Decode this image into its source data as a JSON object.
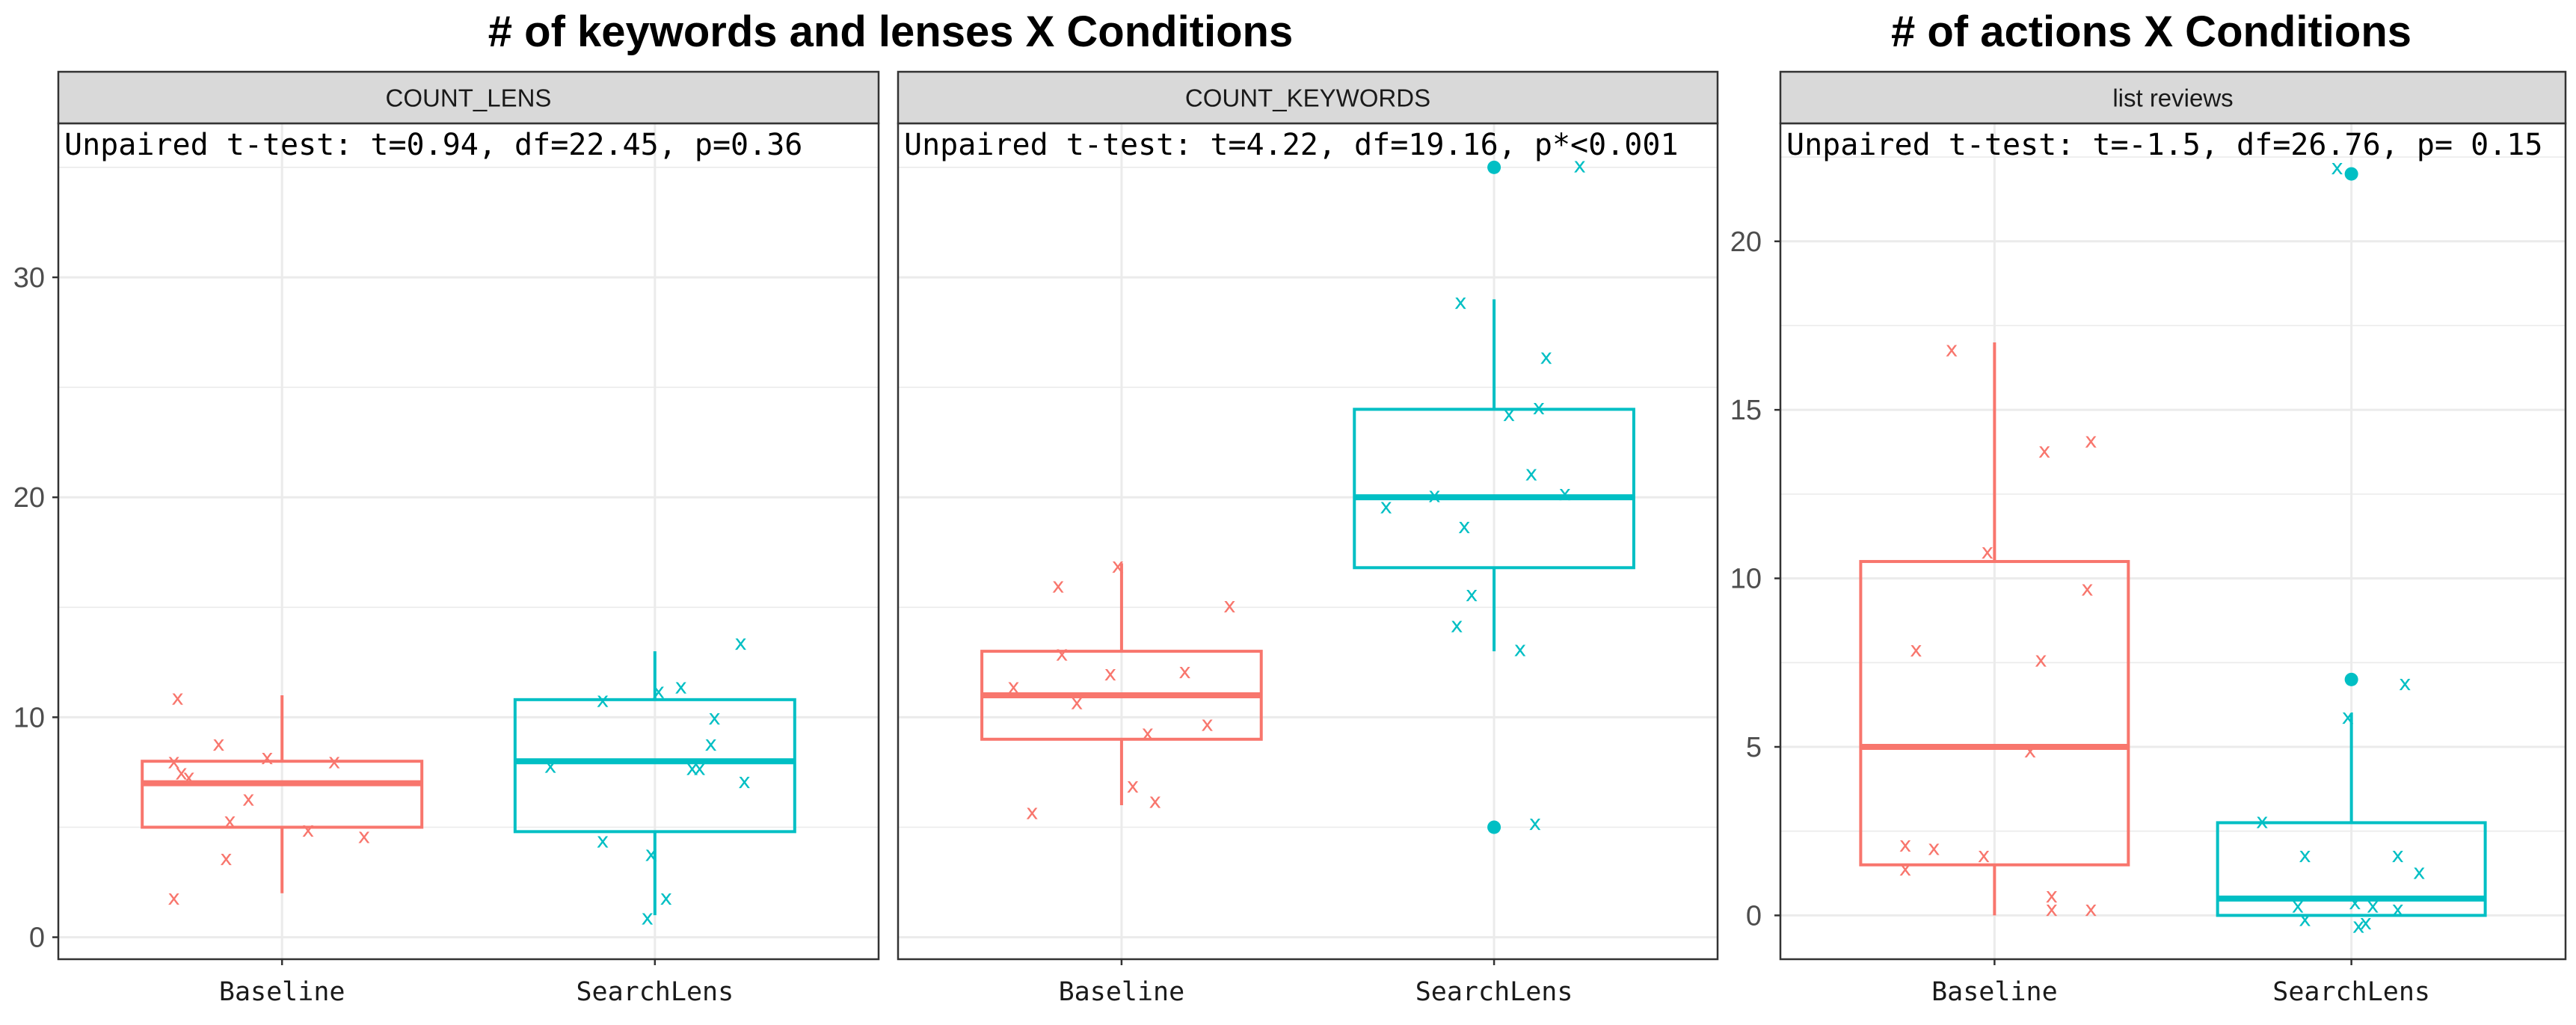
{
  "colors": {
    "baseline": "#F8766D",
    "searchlens": "#00BFC4",
    "strip_bg": "#D9D9D9",
    "grid": "#EBEBEB",
    "frame": "#333333"
  },
  "chart_data": [
    {
      "type": "box",
      "title": "# of keywords and lenses X Conditions",
      "panel": "COUNT_LENS",
      "annotation": "Unpaired t-test: t=0.94, df=22.45, p=0.36",
      "categories": [
        "Baseline",
        "SearchLens"
      ],
      "ylim": [
        -1,
        37
      ],
      "yticks": [
        0,
        10,
        20,
        30
      ],
      "grid": true,
      "boxes": [
        {
          "group": "Baseline",
          "min": 2,
          "q1": 5,
          "median": 7,
          "q3": 8,
          "max": 11,
          "outliers": []
        },
        {
          "group": "SearchLens",
          "min": 1,
          "q1": 4.8,
          "median": 8,
          "q3": 10.8,
          "max": 13,
          "outliers": []
        }
      ],
      "points": [
        {
          "group": "Baseline",
          "jitter": -0.28,
          "y": 10.9
        },
        {
          "group": "Baseline",
          "jitter": -0.17,
          "y": 8.8
        },
        {
          "group": "Baseline",
          "jitter": -0.29,
          "y": 8.0
        },
        {
          "group": "Baseline",
          "jitter": -0.27,
          "y": 7.5
        },
        {
          "group": "Baseline",
          "jitter": -0.25,
          "y": 7.3
        },
        {
          "group": "Baseline",
          "jitter": -0.04,
          "y": 8.2
        },
        {
          "group": "Baseline",
          "jitter": 0.14,
          "y": 8.0
        },
        {
          "group": "Baseline",
          "jitter": -0.09,
          "y": 6.3
        },
        {
          "group": "Baseline",
          "jitter": -0.14,
          "y": 5.3
        },
        {
          "group": "Baseline",
          "jitter": 0.07,
          "y": 4.9
        },
        {
          "group": "Baseline",
          "jitter": 0.22,
          "y": 4.6
        },
        {
          "group": "Baseline",
          "jitter": -0.15,
          "y": 3.6
        },
        {
          "group": "Baseline",
          "jitter": -0.29,
          "y": 1.8
        },
        {
          "group": "SearchLens",
          "jitter": 0.23,
          "y": 13.4
        },
        {
          "group": "SearchLens",
          "jitter": 0.07,
          "y": 11.4
        },
        {
          "group": "SearchLens",
          "jitter": 0.01,
          "y": 11.2
        },
        {
          "group": "SearchLens",
          "jitter": -0.14,
          "y": 10.8
        },
        {
          "group": "SearchLens",
          "jitter": 0.16,
          "y": 10.0
        },
        {
          "group": "SearchLens",
          "jitter": 0.15,
          "y": 8.8
        },
        {
          "group": "SearchLens",
          "jitter": -0.28,
          "y": 7.8
        },
        {
          "group": "SearchLens",
          "jitter": 0.1,
          "y": 7.7
        },
        {
          "group": "SearchLens",
          "jitter": 0.12,
          "y": 7.7
        },
        {
          "group": "SearchLens",
          "jitter": 0.24,
          "y": 7.1
        },
        {
          "group": "SearchLens",
          "jitter": -0.14,
          "y": 4.4
        },
        {
          "group": "SearchLens",
          "jitter": -0.01,
          "y": 3.8
        },
        {
          "group": "SearchLens",
          "jitter": 0.03,
          "y": 1.8
        },
        {
          "group": "SearchLens",
          "jitter": -0.02,
          "y": 0.9
        }
      ]
    },
    {
      "type": "box",
      "panel": "COUNT_KEYWORDS",
      "annotation": "Unpaired t-test: t=4.22, df=19.16, p*<0.001",
      "categories": [
        "Baseline",
        "SearchLens"
      ],
      "ylim": [
        -1,
        37
      ],
      "yticks": [
        0,
        10,
        20,
        30
      ],
      "grid": true,
      "boxes": [
        {
          "group": "Baseline",
          "min": 6,
          "q1": 9,
          "median": 11,
          "q3": 13,
          "max": 17,
          "outliers": []
        },
        {
          "group": "SearchLens",
          "min": 13,
          "q1": 16.8,
          "median": 20,
          "q3": 24,
          "max": 29,
          "outliers": [
            35,
            5
          ]
        }
      ],
      "points": [
        {
          "group": "Baseline",
          "jitter": -0.01,
          "y": 16.9
        },
        {
          "group": "Baseline",
          "jitter": -0.17,
          "y": 16.0
        },
        {
          "group": "Baseline",
          "jitter": 0.29,
          "y": 15.1
        },
        {
          "group": "Baseline",
          "jitter": -0.16,
          "y": 12.9
        },
        {
          "group": "Baseline",
          "jitter": -0.03,
          "y": 12.0
        },
        {
          "group": "Baseline",
          "jitter": 0.17,
          "y": 12.1
        },
        {
          "group": "Baseline",
          "jitter": -0.29,
          "y": 11.4
        },
        {
          "group": "Baseline",
          "jitter": -0.12,
          "y": 10.7
        },
        {
          "group": "Baseline",
          "jitter": 0.23,
          "y": 9.7
        },
        {
          "group": "Baseline",
          "jitter": 0.07,
          "y": 9.3
        },
        {
          "group": "Baseline",
          "jitter": 0.03,
          "y": 6.9
        },
        {
          "group": "Baseline",
          "jitter": 0.09,
          "y": 6.2
        },
        {
          "group": "Baseline",
          "jitter": -0.24,
          "y": 5.7
        },
        {
          "group": "SearchLens",
          "jitter": 0.23,
          "y": 35.1
        },
        {
          "group": "SearchLens",
          "jitter": -0.09,
          "y": 28.9
        },
        {
          "group": "SearchLens",
          "jitter": 0.14,
          "y": 26.4
        },
        {
          "group": "SearchLens",
          "jitter": 0.12,
          "y": 24.1
        },
        {
          "group": "SearchLens",
          "jitter": 0.04,
          "y": 23.8
        },
        {
          "group": "SearchLens",
          "jitter": 0.1,
          "y": 21.1
        },
        {
          "group": "SearchLens",
          "jitter": 0.19,
          "y": 20.2
        },
        {
          "group": "SearchLens",
          "jitter": -0.16,
          "y": 20.1
        },
        {
          "group": "SearchLens",
          "jitter": -0.29,
          "y": 19.6
        },
        {
          "group": "SearchLens",
          "jitter": -0.08,
          "y": 18.7
        },
        {
          "group": "SearchLens",
          "jitter": -0.06,
          "y": 15.6
        },
        {
          "group": "SearchLens",
          "jitter": -0.1,
          "y": 14.2
        },
        {
          "group": "SearchLens",
          "jitter": 0.07,
          "y": 13.1
        },
        {
          "group": "SearchLens",
          "jitter": 0.11,
          "y": 5.2
        }
      ]
    },
    {
      "type": "box",
      "title": "# of actions X Conditions",
      "panel": "list reviews",
      "annotation": "Unpaired t-test: t=-1.5, df=26.76, p= 0.15",
      "categories": [
        "Baseline",
        "SearchLens"
      ],
      "ylim": [
        -1.3,
        23.5
      ],
      "yticks": [
        0,
        5,
        10,
        15,
        20
      ],
      "grid": true,
      "boxes": [
        {
          "group": "Baseline",
          "min": 0,
          "q1": 1.5,
          "median": 5,
          "q3": 10.5,
          "max": 17,
          "outliers": []
        },
        {
          "group": "SearchLens",
          "min": 0,
          "q1": 0,
          "median": 0.5,
          "q3": 2.75,
          "max": 6,
          "outliers": [
            22,
            7
          ]
        }
      ],
      "points": [
        {
          "group": "Baseline",
          "jitter": -0.12,
          "y": 16.8
        },
        {
          "group": "Baseline",
          "jitter": 0.27,
          "y": 14.1
        },
        {
          "group": "Baseline",
          "jitter": 0.14,
          "y": 13.8
        },
        {
          "group": "Baseline",
          "jitter": -0.02,
          "y": 10.8
        },
        {
          "group": "Baseline",
          "jitter": 0.26,
          "y": 9.7
        },
        {
          "group": "Baseline",
          "jitter": -0.22,
          "y": 7.9
        },
        {
          "group": "Baseline",
          "jitter": 0.13,
          "y": 7.6
        },
        {
          "group": "Baseline",
          "jitter": 0.1,
          "y": 4.9
        },
        {
          "group": "Baseline",
          "jitter": -0.25,
          "y": 2.1
        },
        {
          "group": "Baseline",
          "jitter": -0.17,
          "y": 2.0
        },
        {
          "group": "Baseline",
          "jitter": -0.03,
          "y": 1.8
        },
        {
          "group": "Baseline",
          "jitter": -0.25,
          "y": 1.4
        },
        {
          "group": "Baseline",
          "jitter": 0.16,
          "y": 0.6
        },
        {
          "group": "Baseline",
          "jitter": 0.16,
          "y": 0.2
        },
        {
          "group": "Baseline",
          "jitter": 0.27,
          "y": 0.2
        },
        {
          "group": "SearchLens",
          "jitter": -0.04,
          "y": 22.2
        },
        {
          "group": "SearchLens",
          "jitter": 0.15,
          "y": 6.9
        },
        {
          "group": "SearchLens",
          "jitter": -0.01,
          "y": 5.9
        },
        {
          "group": "SearchLens",
          "jitter": -0.25,
          "y": 2.8
        },
        {
          "group": "SearchLens",
          "jitter": -0.13,
          "y": 1.8
        },
        {
          "group": "SearchLens",
          "jitter": 0.13,
          "y": 1.8
        },
        {
          "group": "SearchLens",
          "jitter": 0.19,
          "y": 1.3
        },
        {
          "group": "SearchLens",
          "jitter": -0.15,
          "y": 0.3
        },
        {
          "group": "SearchLens",
          "jitter": 0.01,
          "y": 0.4
        },
        {
          "group": "SearchLens",
          "jitter": 0.06,
          "y": 0.3
        },
        {
          "group": "SearchLens",
          "jitter": 0.13,
          "y": 0.2
        },
        {
          "group": "SearchLens",
          "jitter": -0.13,
          "y": -0.1
        },
        {
          "group": "SearchLens",
          "jitter": 0.04,
          "y": -0.2
        },
        {
          "group": "SearchLens",
          "jitter": 0.02,
          "y": -0.3
        }
      ]
    }
  ]
}
